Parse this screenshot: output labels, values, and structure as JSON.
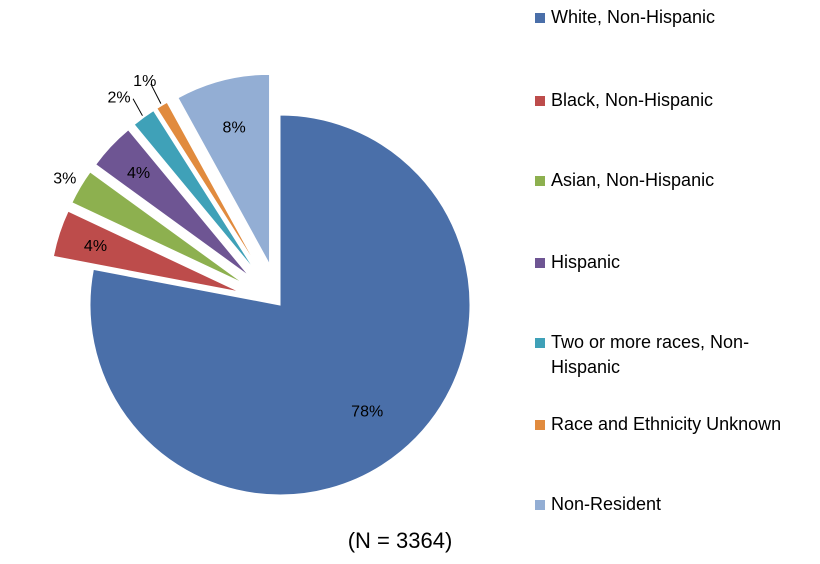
{
  "chart_data": {
    "type": "pie",
    "series": [
      {
        "name": "",
        "values": [
          78,
          4,
          3,
          4,
          2,
          1,
          8
        ]
      }
    ],
    "categories": [
      "White, Non-Hispanic",
      "Black, Non-Hispanic",
      "Asian, Non-Hispanic",
      "Hispanic",
      "Two or more races, Non-Hispanic",
      "Race and Ethnicity Unknown",
      "Non-Resident"
    ],
    "data_labels": [
      "78%",
      "4%",
      "3%",
      "4%",
      "2%",
      "1%",
      "8%"
    ],
    "colors": [
      "#4A6FA9",
      "#BD4C4B",
      "#8DB04F",
      "#6E5593",
      "#3FA1B8",
      "#E18B3E",
      "#93AED4"
    ],
    "exploded_slices": [
      1,
      2,
      3,
      4,
      5,
      6
    ],
    "legend_position": "right",
    "caption": "(N = 3364)"
  }
}
